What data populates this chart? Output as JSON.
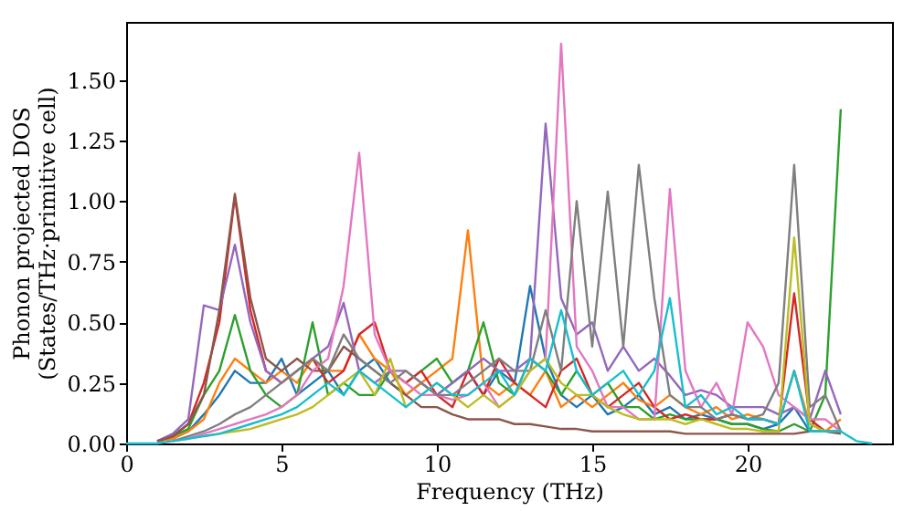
{
  "chart_data": {
    "type": "line",
    "xlabel": "Frequency (THz)",
    "ylabel": "Phonon projected DOS\n(States/THz·primitive cell)",
    "xlim": [
      0,
      24.65
    ],
    "ylim": [
      0,
      1.74
    ],
    "xticks": [
      0,
      5,
      10,
      15,
      20
    ],
    "yticks": [
      {
        "value": 0,
        "label": "0.00"
      },
      0.25,
      {
        "value": 0.5,
        "label": "0.50"
      },
      0.75,
      {
        "value": 1,
        "label": "1.00"
      },
      1.25,
      {
        "value": 1.5,
        "label": "1.50"
      }
    ],
    "grid": false,
    "legend": false,
    "marker": "none",
    "line_style": "solid",
    "x": [
      0,
      0.5,
      1,
      1.5,
      2,
      2.5,
      3,
      3.5,
      4,
      4.5,
      5,
      5.5,
      6,
      6.5,
      7,
      7.5,
      8,
      8.5,
      9,
      9.5,
      10,
      10.5,
      11,
      11.5,
      12,
      12.5,
      13,
      13.5,
      14,
      14.5,
      15,
      15.5,
      16,
      16.5,
      17,
      17.5,
      18,
      18.5,
      19,
      19.5,
      20,
      20.5,
      21,
      21.5,
      22,
      22.5,
      23,
      23.5,
      24
    ],
    "series": [
      {
        "color": "#1f77b4",
        "values": [
          null,
          null,
          0.01,
          0.02,
          0.05,
          0.12,
          0.2,
          0.3,
          0.25,
          0.25,
          0.35,
          0.2,
          0.25,
          0.3,
          0.2,
          0.3,
          0.35,
          0.25,
          0.2,
          0.25,
          0.2,
          0.25,
          0.3,
          0.2,
          0.3,
          0.25,
          0.65,
          0.35,
          0.2,
          0.15,
          0.2,
          0.12,
          0.15,
          0.2,
          0.12,
          0.15,
          0.1,
          0.12,
          0.1,
          0.08,
          0.08,
          0.06,
          0.08,
          0.15,
          0.05,
          0.05,
          0.05,
          null,
          null
        ]
      },
      {
        "color": "#ff7f0e",
        "values": [
          null,
          null,
          0.01,
          0.02,
          0.05,
          0.1,
          0.25,
          0.35,
          0.3,
          0.25,
          0.3,
          0.25,
          0.35,
          0.3,
          0.3,
          0.45,
          0.35,
          0.3,
          0.2,
          0.25,
          0.3,
          0.35,
          0.88,
          0.25,
          0.2,
          0.25,
          0.2,
          0.3,
          0.15,
          0.2,
          0.15,
          0.2,
          0.25,
          0.18,
          0.15,
          0.2,
          0.15,
          0.12,
          0.15,
          0.1,
          0.12,
          0.1,
          0.08,
          0.3,
          0.08,
          0.05,
          0.1,
          null,
          null
        ]
      },
      {
        "color": "#2ca02c",
        "values": [
          null,
          null,
          0.01,
          0.03,
          0.06,
          0.2,
          0.3,
          0.53,
          0.3,
          0.2,
          0.15,
          0.2,
          0.5,
          0.2,
          0.25,
          0.2,
          0.2,
          0.3,
          0.25,
          0.3,
          0.35,
          0.25,
          0.3,
          0.5,
          0.25,
          0.2,
          0.35,
          0.3,
          0.2,
          0.3,
          0.2,
          0.25,
          0.15,
          0.15,
          0.1,
          0.12,
          0.1,
          0.1,
          0.1,
          0.08,
          0.08,
          0.06,
          0.05,
          0.08,
          0.05,
          0.2,
          1.38,
          null,
          null
        ]
      },
      {
        "color": "#d62728",
        "values": [
          null,
          null,
          0.01,
          0.03,
          0.08,
          0.25,
          0.5,
          1.02,
          0.55,
          0.3,
          0.25,
          0.3,
          0.35,
          0.25,
          0.3,
          0.45,
          0.5,
          0.3,
          0.25,
          0.3,
          0.2,
          0.15,
          0.3,
          0.2,
          0.35,
          0.25,
          0.2,
          0.15,
          0.3,
          0.35,
          0.2,
          0.15,
          0.2,
          0.25,
          0.15,
          0.1,
          0.12,
          0.1,
          0.1,
          0.12,
          0.1,
          0.1,
          0.08,
          0.62,
          0.1,
          0.05,
          0.05,
          null,
          null
        ]
      },
      {
        "color": "#9467bd",
        "values": [
          null,
          null,
          0.01,
          0.04,
          0.1,
          0.57,
          0.55,
          0.82,
          0.5,
          0.3,
          0.25,
          0.3,
          0.35,
          0.4,
          0.58,
          0.3,
          0.25,
          0.3,
          0.3,
          0.25,
          0.2,
          0.25,
          0.3,
          0.35,
          0.3,
          0.3,
          0.35,
          1.32,
          0.6,
          0.45,
          0.5,
          0.3,
          0.4,
          0.3,
          0.35,
          0.28,
          0.2,
          0.22,
          0.2,
          0.15,
          0.15,
          0.15,
          0.12,
          0.15,
          0.1,
          0.3,
          0.12,
          null,
          null
        ]
      },
      {
        "color": "#8c564b",
        "values": [
          null,
          null,
          0.01,
          0.03,
          0.08,
          0.2,
          0.55,
          1.03,
          0.6,
          0.35,
          0.3,
          0.35,
          0.3,
          0.3,
          0.4,
          0.35,
          0.3,
          0.25,
          0.2,
          0.15,
          0.15,
          0.12,
          0.1,
          0.1,
          0.1,
          0.08,
          0.08,
          0.07,
          0.06,
          0.06,
          0.05,
          0.05,
          0.05,
          0.05,
          0.05,
          0.05,
          0.04,
          0.04,
          0.04,
          0.04,
          0.04,
          0.04,
          0.04,
          0.04,
          0.05,
          0.05,
          0.04,
          null,
          null
        ]
      },
      {
        "color": "#e377c2",
        "values": [
          null,
          null,
          null,
          0.01,
          0.02,
          0.04,
          0.06,
          0.08,
          0.1,
          0.12,
          0.15,
          0.2,
          0.3,
          0.35,
          0.65,
          1.2,
          0.45,
          0.3,
          0.25,
          0.2,
          0.2,
          0.18,
          0.2,
          0.25,
          0.15,
          0.2,
          0.3,
          0.35,
          1.65,
          0.4,
          0.3,
          0.15,
          0.15,
          0.1,
          0.1,
          1.05,
          0.3,
          0.15,
          0.25,
          0.12,
          0.5,
          0.4,
          0.2,
          0.15,
          0.1,
          0.1,
          0.05,
          null,
          null
        ]
      },
      {
        "color": "#7f7f7f",
        "values": [
          null,
          null,
          null,
          0.01,
          0.03,
          0.05,
          0.08,
          0.12,
          0.15,
          0.2,
          0.25,
          0.3,
          0.35,
          0.3,
          0.45,
          0.35,
          0.3,
          0.25,
          0.3,
          0.25,
          0.2,
          0.2,
          0.25,
          0.3,
          0.35,
          0.3,
          0.3,
          0.55,
          0.3,
          1.0,
          0.4,
          1.04,
          0.4,
          1.15,
          0.6,
          0.2,
          0.15,
          0.15,
          0.1,
          0.12,
          0.1,
          0.12,
          0.25,
          1.15,
          0.15,
          0.2,
          0.05,
          null,
          null
        ]
      },
      {
        "color": "#bcbd22",
        "values": [
          null,
          null,
          null,
          null,
          null,
          0.03,
          0.04,
          0.05,
          0.06,
          0.08,
          0.1,
          0.12,
          0.15,
          0.2,
          0.25,
          0.3,
          0.2,
          0.35,
          0.15,
          0.2,
          0.25,
          0.2,
          0.15,
          0.2,
          0.15,
          0.2,
          0.3,
          0.35,
          0.25,
          0.2,
          0.2,
          0.15,
          0.12,
          0.1,
          0.1,
          0.1,
          0.08,
          0.1,
          0.08,
          0.06,
          0.06,
          0.05,
          0.05,
          0.85,
          0.08,
          0.05,
          0.05,
          null,
          null
        ]
      },
      {
        "color": "#17becf",
        "values": [
          0,
          0,
          0,
          0.01,
          0.02,
          0.03,
          0.04,
          0.06,
          0.08,
          0.1,
          0.12,
          0.15,
          0.2,
          0.25,
          0.2,
          0.3,
          0.25,
          0.2,
          0.15,
          0.2,
          0.25,
          0.2,
          0.2,
          0.25,
          0.3,
          0.2,
          0.35,
          0.3,
          0.55,
          0.3,
          0.2,
          0.25,
          0.3,
          0.2,
          0.3,
          0.6,
          0.15,
          0.2,
          0.12,
          0.15,
          0.1,
          0.1,
          0.08,
          0.3,
          0.05,
          0.05,
          0.05,
          0.01,
          0
        ]
      }
    ]
  }
}
